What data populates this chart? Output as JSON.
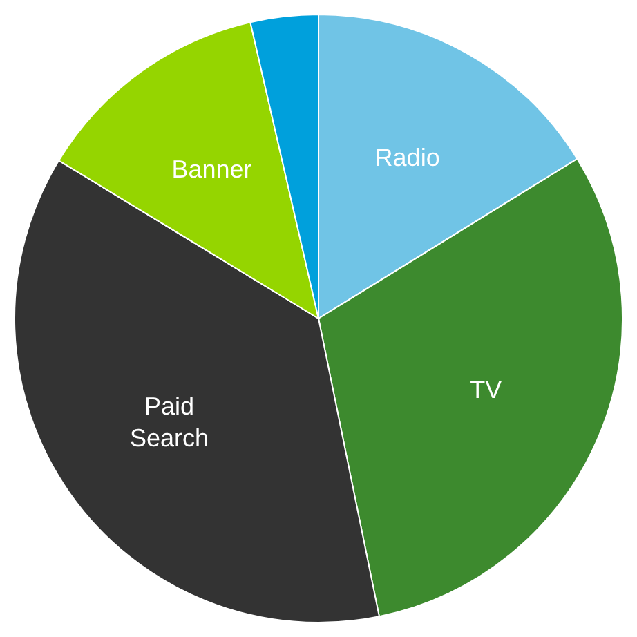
{
  "chart_data": {
    "type": "pie",
    "categories": [
      "Radio",
      "TV",
      "Paid Search",
      "Banner",
      null
    ],
    "values": [
      16.2,
      30.6,
      36.9,
      12.7,
      3.6
    ],
    "colors": [
      "#70c4e6",
      "#3d8a2e",
      "#333333",
      "#95d500",
      "#00a0dc"
    ]
  }
}
